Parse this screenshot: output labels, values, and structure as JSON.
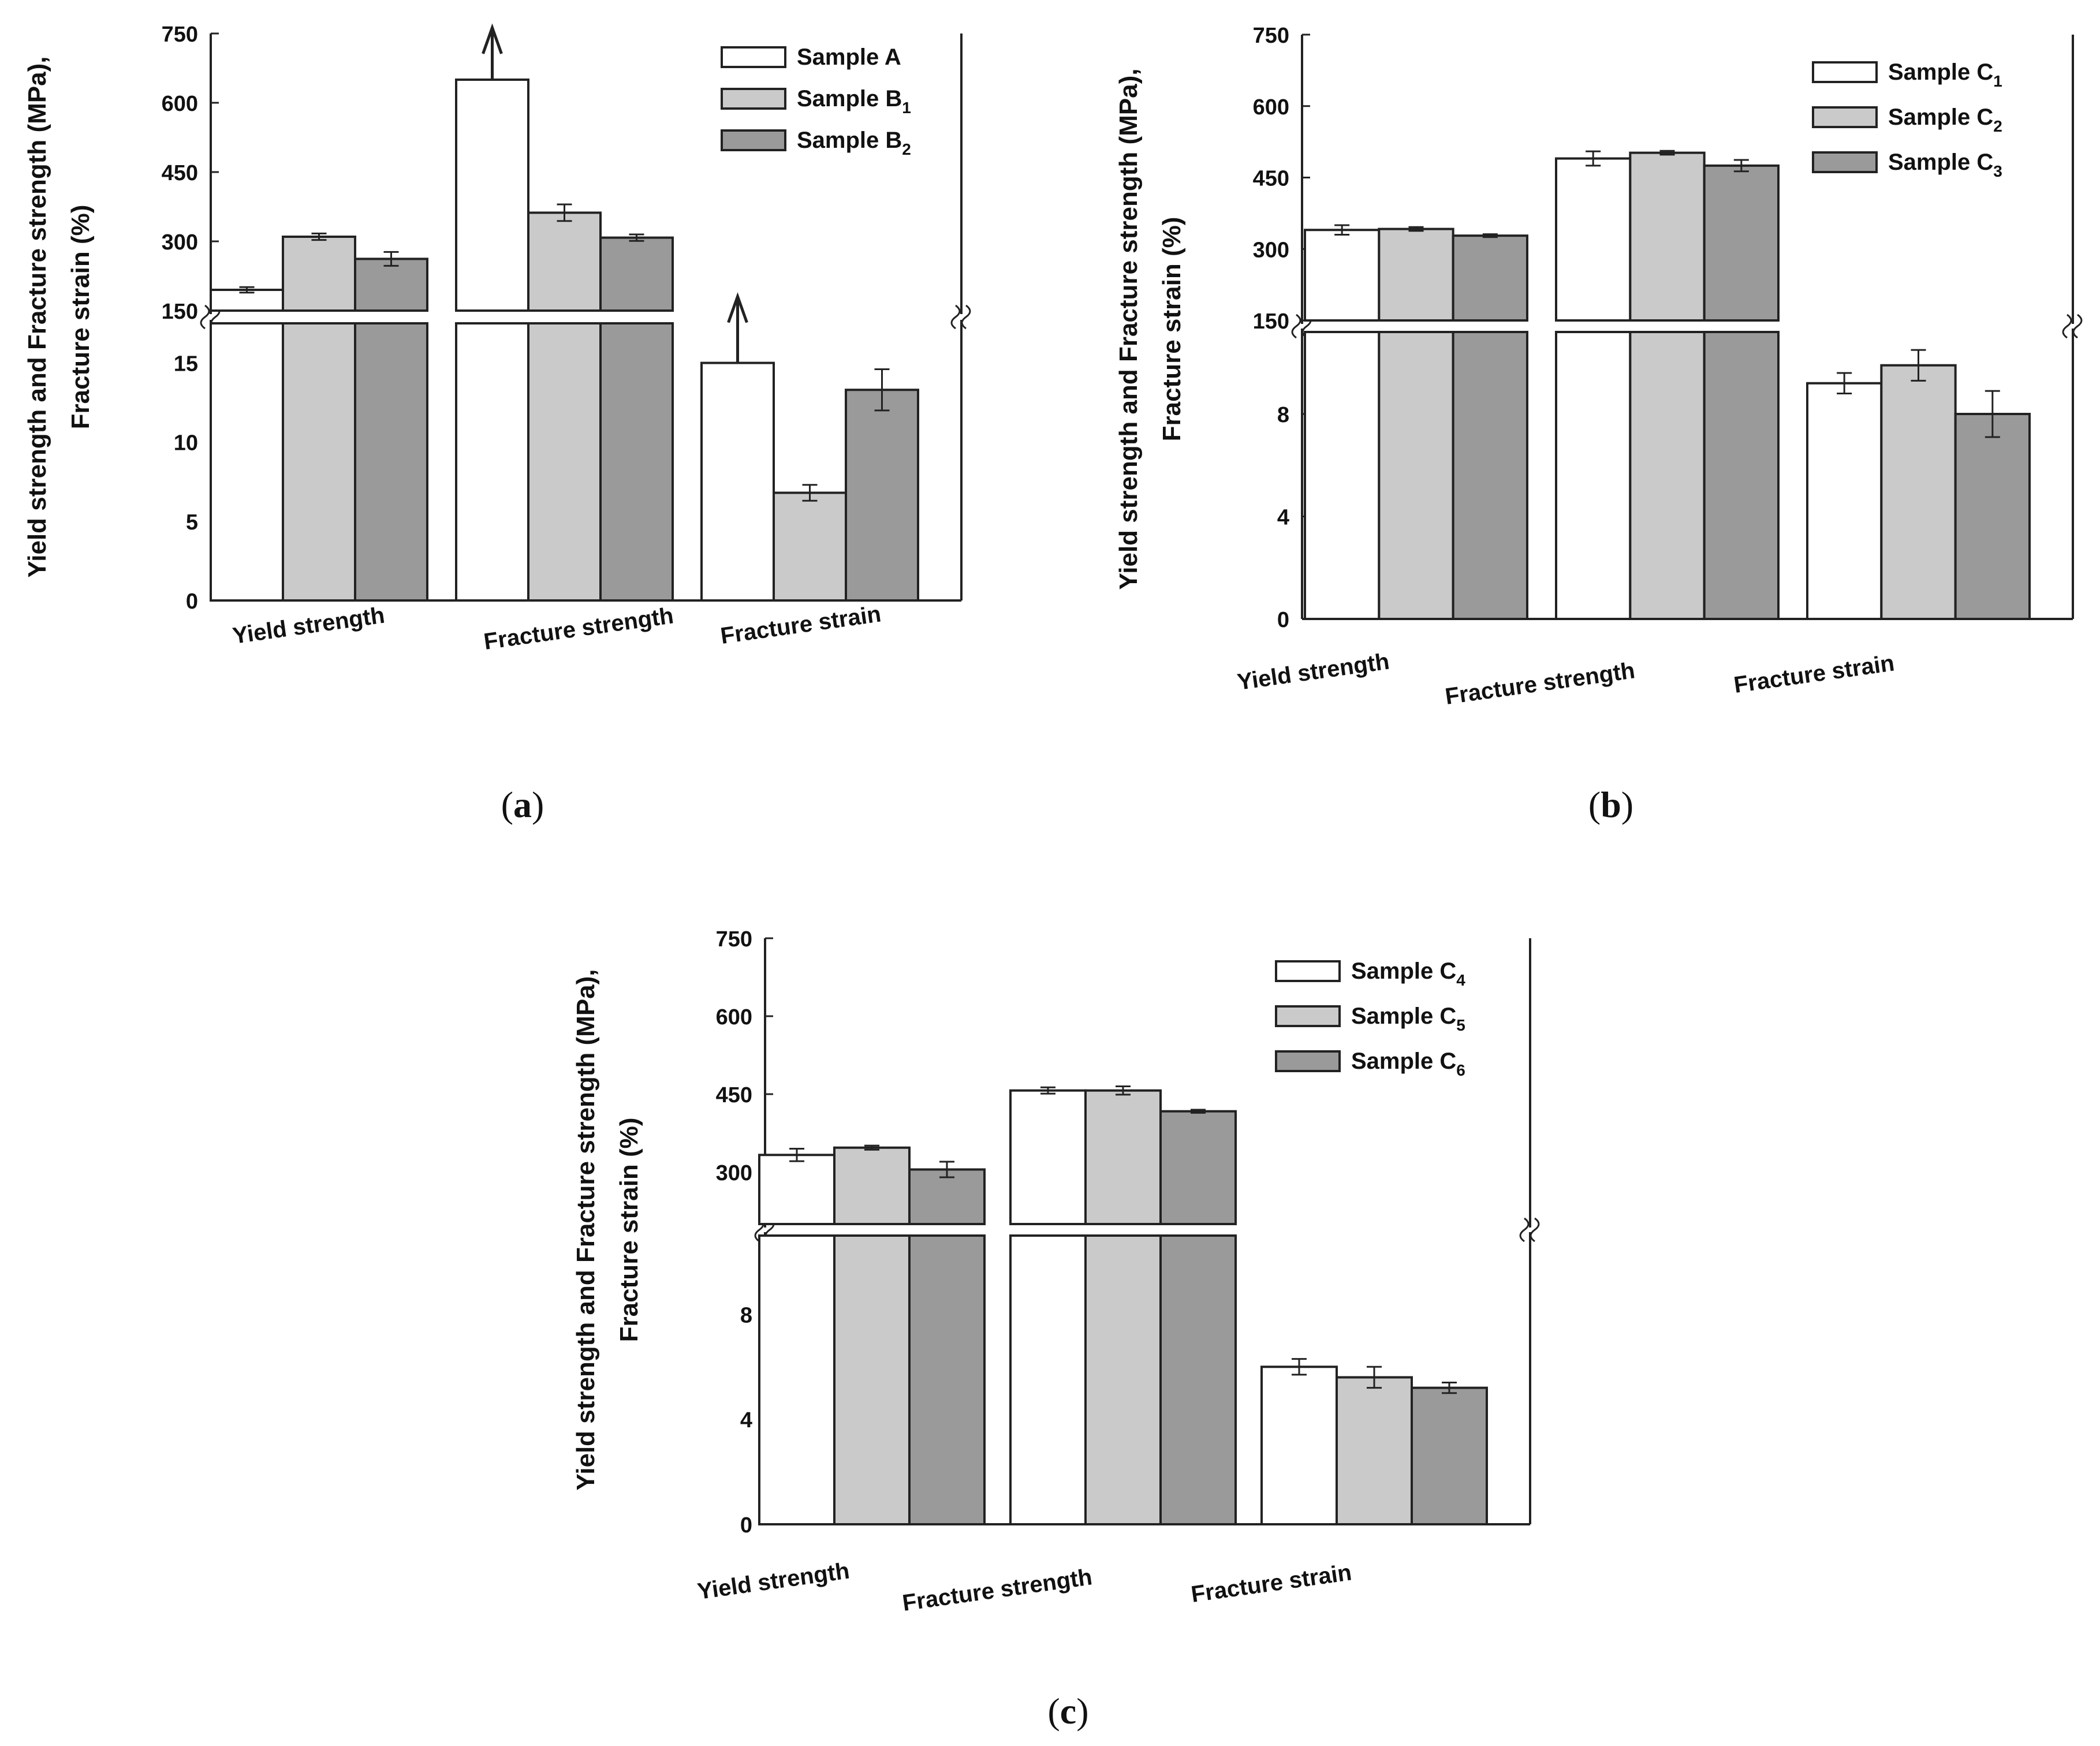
{
  "colors": {
    "sample1": "#ffffff",
    "sample2": "#cacaca",
    "sample3": "#9a9a9a",
    "stroke": "#222222",
    "background": "#ffffff"
  },
  "chart_data": [
    {
      "type": "bar",
      "panel": "a",
      "panel_label": {
        "open": "(",
        "letter": "a",
        "close": ")"
      },
      "categories": [
        "Yield strength",
        "Fracture strength",
        "Fracture strain"
      ],
      "ylabel_line1": "Yield strength and Fracture strength (MPa),",
      "ylabel_line2": "Fracture strain (%)",
      "upper_axis": {
        "ylim": [
          150,
          750
        ],
        "ticks": [
          "150",
          "300",
          "450",
          "600",
          "750"
        ]
      },
      "lower_axis": {
        "ylim": [
          0,
          17.5
        ],
        "ticks": [
          "0",
          "5",
          "10",
          "15"
        ]
      },
      "series": [
        {
          "name": "Sample A",
          "name_base": "Sample A",
          "name_sub": "",
          "values": [
            195,
            650,
            15
          ],
          "errors": [
            6,
            0,
            0
          ],
          "arrow": [
            false,
            true,
            true
          ]
        },
        {
          "name": "Sample B1",
          "name_base": "Sample B",
          "name_sub": "1",
          "values": [
            310,
            362,
            6.8
          ],
          "errors": [
            7,
            18,
            0.5
          ],
          "arrow": [
            false,
            false,
            false
          ]
        },
        {
          "name": "Sample B2",
          "name_base": "Sample B",
          "name_sub": "2",
          "values": [
            262,
            308,
            13.3
          ],
          "errors": [
            15,
            7,
            1.3
          ],
          "arrow": [
            false,
            false,
            false
          ]
        }
      ]
    },
    {
      "type": "bar",
      "panel": "b",
      "panel_label": {
        "open": "(",
        "letter": "b",
        "close": ")"
      },
      "categories": [
        "Yield strength",
        "Fracture strength",
        "Fracture strain"
      ],
      "ylabel_line1": "Yield strength and Fracture strength (MPa),",
      "ylabel_line2": "Fracture strain (%)",
      "upper_axis": {
        "ylim": [
          150,
          750
        ],
        "ticks": [
          "150",
          "300",
          "450",
          "600",
          "750"
        ]
      },
      "lower_axis": {
        "ylim": [
          0,
          11.2
        ],
        "ticks": [
          "0",
          "4",
          "8"
        ]
      },
      "series": [
        {
          "name": "Sample C1",
          "name_base": "Sample C",
          "name_sub": "1",
          "values": [
            340,
            490,
            9.2
          ],
          "errors": [
            10,
            15,
            0.4
          ],
          "arrow": [
            false,
            false,
            false
          ]
        },
        {
          "name": "Sample C2",
          "name_base": "Sample C",
          "name_sub": "2",
          "values": [
            342,
            502,
            9.9
          ],
          "errors": [
            4,
            4,
            0.6
          ],
          "arrow": [
            false,
            false,
            false
          ]
        },
        {
          "name": "Sample C3",
          "name_base": "Sample C",
          "name_sub": "3",
          "values": [
            328,
            475,
            8.0
          ],
          "errors": [
            3,
            12,
            0.9
          ],
          "arrow": [
            false,
            false,
            false
          ]
        }
      ]
    },
    {
      "type": "bar",
      "panel": "c",
      "panel_label": {
        "open": "(",
        "letter": "c",
        "close": ")"
      },
      "categories": [
        "Yield strength",
        "Fracture strength",
        "Fracture strain"
      ],
      "ylabel_line1": "Yield strength and Fracture strength (MPa),",
      "ylabel_line2": "Fracture strain (%)",
      "upper_axis": {
        "ylim": [
          200,
          750
        ],
        "ticks": [
          "300",
          "450",
          "600",
          "750"
        ]
      },
      "lower_axis": {
        "ylim": [
          0,
          11
        ],
        "ticks": [
          "0",
          "4",
          "8"
        ]
      },
      "series": [
        {
          "name": "Sample C4",
          "name_base": "Sample C",
          "name_sub": "4",
          "values": [
            333,
            457,
            6.0
          ],
          "errors": [
            12,
            6,
            0.3
          ],
          "arrow": [
            false,
            false,
            false
          ]
        },
        {
          "name": "Sample C5",
          "name_base": "Sample C",
          "name_sub": "5",
          "values": [
            347,
            457,
            5.6
          ],
          "errors": [
            4,
            8,
            0.4
          ],
          "arrow": [
            false,
            false,
            false
          ]
        },
        {
          "name": "Sample C6",
          "name_base": "Sample C",
          "name_sub": "6",
          "values": [
            305,
            417,
            5.2
          ],
          "errors": [
            15,
            3,
            0.2
          ],
          "arrow": [
            false,
            false,
            false
          ]
        }
      ]
    }
  ]
}
